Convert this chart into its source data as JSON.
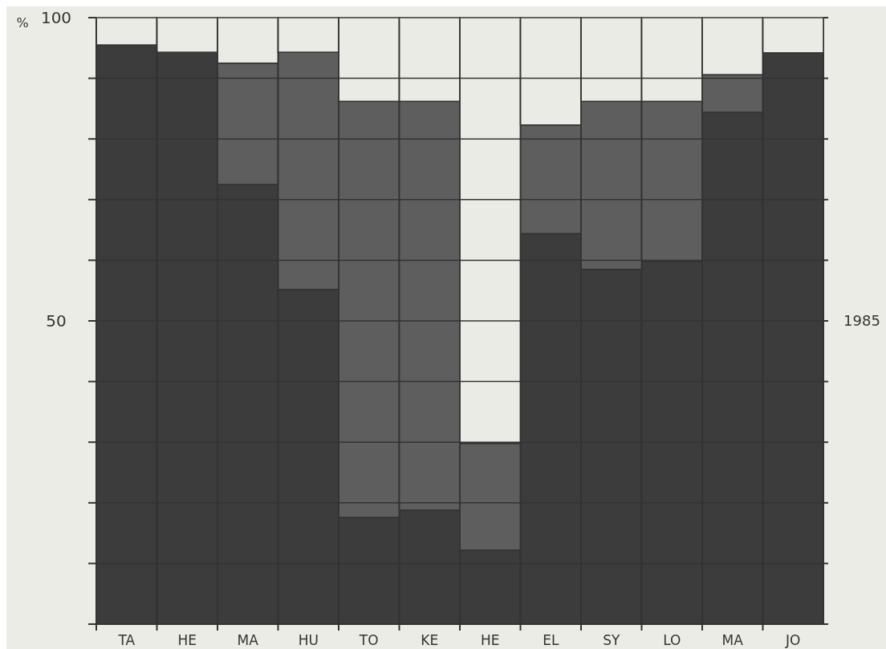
{
  "chart_data": {
    "type": "bar",
    "stacked": true,
    "ylabel": "%",
    "categories": [
      "TA",
      "HE",
      "MA",
      "HU",
      "TO",
      "KE",
      "HE",
      "EL",
      "SY",
      "LO",
      "MA",
      "JO"
    ],
    "series": [
      {
        "color": "#3c3c3c",
        "values": [
          95.5,
          94.3,
          72.5,
          55.2,
          17.6,
          18.8,
          12.2,
          64.4,
          58.5,
          59.8,
          84.4,
          94.2
        ]
      },
      {
        "color": "#5e5e5e",
        "values": [
          0,
          0,
          20,
          39.1,
          68.6,
          67.4,
          17.6,
          17.9,
          27.7,
          26.4,
          6.2,
          0
        ]
      },
      {
        "color": "#ebebe6",
        "values": [
          4.5,
          5.7,
          7.5,
          5.7,
          13.8,
          13.8,
          70.2,
          17.7,
          13.8,
          13.8,
          9.4,
          5.8
        ]
      }
    ],
    "ylim": [
      0,
      100
    ],
    "yticks": [
      {
        "value": 0,
        "label": null
      },
      {
        "value": 10,
        "label": null
      },
      {
        "value": 20,
        "label": null
      },
      {
        "value": 30,
        "label": null
      },
      {
        "value": 40,
        "label": null
      },
      50,
      {
        "value": 60,
        "label": null
      },
      {
        "value": 70,
        "label": null
      },
      {
        "value": 80,
        "label": null
      },
      {
        "value": 90,
        "label": null
      },
      100
    ],
    "grid": true,
    "annotations": [
      "1985"
    ]
  }
}
